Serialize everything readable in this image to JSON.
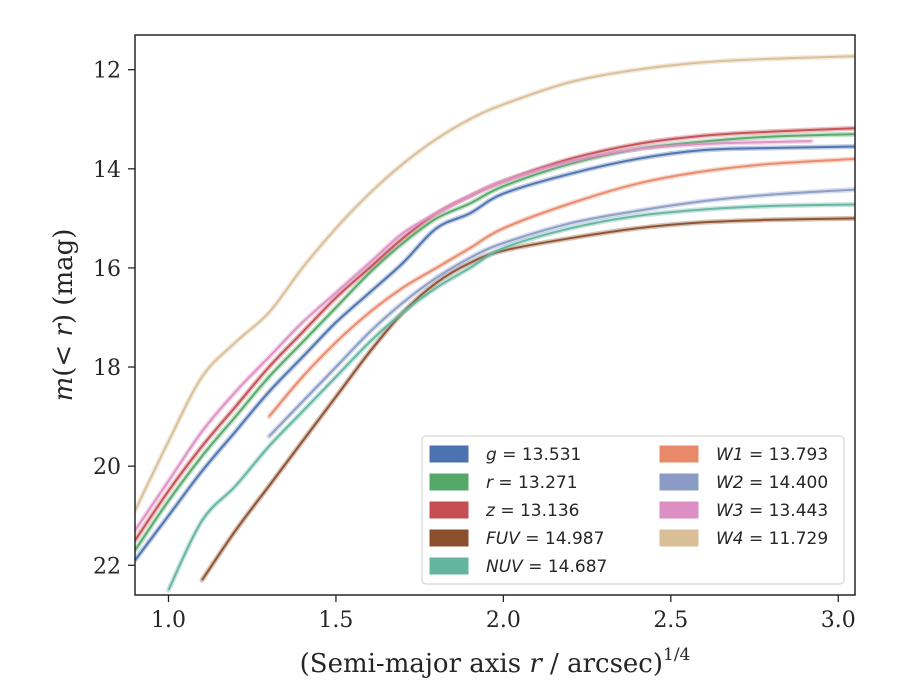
{
  "chart_data": {
    "type": "line",
    "xlabel": "(Semi-major axis r / arcsec)^1/4",
    "xlabel_parts": {
      "prefix": "(Semi-major axis ",
      "var": "r",
      "suffix": " / arcsec)",
      "sup": "1/4"
    },
    "ylabel": "m(< r) (mag)",
    "ylabel_parts": {
      "m": "m",
      "open": "(",
      "lt": "< ",
      "r": "r",
      "close": ")",
      "unit": " (mag)"
    },
    "xlim": [
      0.9,
      3.05
    ],
    "ylim": [
      22.6,
      11.3
    ],
    "y_inverted": true,
    "x_ticks": [
      1.0,
      1.5,
      2.0,
      2.5,
      3.0
    ],
    "x_tick_labels": [
      "1.0",
      "1.5",
      "2.0",
      "2.5",
      "3.0"
    ],
    "y_ticks": [
      12,
      14,
      16,
      18,
      20,
      22
    ],
    "y_tick_labels": [
      "12",
      "14",
      "16",
      "18",
      "20",
      "22"
    ],
    "grid": false,
    "legend_position": "lower-right",
    "series": [
      {
        "name": "g",
        "legend_value": "13.531",
        "color": "#4c72b0",
        "x": [
          0.9,
          1.0,
          1.1,
          1.2,
          1.3,
          1.4,
          1.5,
          1.6,
          1.7,
          1.8,
          1.9,
          2.0,
          2.2,
          2.4,
          2.6,
          2.8,
          3.05
        ],
        "y": [
          21.9,
          21.0,
          20.1,
          19.3,
          18.5,
          17.8,
          17.1,
          16.5,
          15.9,
          15.2,
          14.9,
          14.5,
          14.1,
          13.8,
          13.62,
          13.58,
          13.55
        ]
      },
      {
        "name": "r",
        "legend_value": "13.271",
        "color": "#55a868",
        "x": [
          0.9,
          1.0,
          1.1,
          1.2,
          1.3,
          1.4,
          1.5,
          1.6,
          1.7,
          1.8,
          1.9,
          2.0,
          2.2,
          2.4,
          2.6,
          2.8,
          3.05
        ],
        "y": [
          21.7,
          20.7,
          19.8,
          19.0,
          18.2,
          17.5,
          16.8,
          16.1,
          15.5,
          15.0,
          14.7,
          14.35,
          13.9,
          13.6,
          13.45,
          13.35,
          13.3
        ]
      },
      {
        "name": "z",
        "legend_value": "13.136",
        "color": "#c44e52",
        "x": [
          0.9,
          1.0,
          1.1,
          1.2,
          1.3,
          1.4,
          1.5,
          1.6,
          1.7,
          1.8,
          1.9,
          2.0,
          2.2,
          2.4,
          2.6,
          2.8,
          3.05
        ],
        "y": [
          21.5,
          20.5,
          19.6,
          18.8,
          18.0,
          17.3,
          16.6,
          16.0,
          15.4,
          14.9,
          14.55,
          14.25,
          13.8,
          13.5,
          13.33,
          13.25,
          13.18
        ]
      },
      {
        "name": "FUV",
        "legend_value": "14.987",
        "color": "#8c4f2e",
        "x": [
          1.1,
          1.2,
          1.3,
          1.4,
          1.5,
          1.6,
          1.7,
          1.8,
          1.9,
          2.0,
          2.2,
          2.4,
          2.6,
          2.8,
          3.05
        ],
        "y": [
          22.3,
          21.3,
          20.4,
          19.5,
          18.6,
          17.7,
          16.9,
          16.3,
          15.9,
          15.65,
          15.4,
          15.2,
          15.08,
          15.03,
          15.0
        ]
      },
      {
        "name": "NUV",
        "legend_value": "14.687",
        "color": "#64b5a0",
        "x": [
          1.0,
          1.1,
          1.2,
          1.3,
          1.4,
          1.5,
          1.6,
          1.7,
          1.8,
          1.9,
          2.0,
          2.2,
          2.4,
          2.6,
          2.8,
          3.05
        ],
        "y": [
          22.5,
          21.1,
          20.4,
          19.6,
          18.9,
          18.2,
          17.5,
          16.9,
          16.4,
          16.0,
          15.6,
          15.2,
          14.95,
          14.82,
          14.75,
          14.72
        ]
      },
      {
        "name": "W1",
        "legend_value": "13.793",
        "color": "#e8896a",
        "x": [
          1.3,
          1.4,
          1.5,
          1.6,
          1.7,
          1.8,
          1.9,
          2.0,
          2.2,
          2.4,
          2.6,
          2.8,
          3.05
        ],
        "y": [
          19.0,
          18.2,
          17.5,
          16.9,
          16.4,
          16.0,
          15.6,
          15.2,
          14.7,
          14.3,
          14.05,
          13.9,
          13.8
        ]
      },
      {
        "name": "W2",
        "legend_value": "14.400",
        "color": "#8a9bc6",
        "x": [
          1.3,
          1.4,
          1.5,
          1.6,
          1.7,
          1.8,
          1.9,
          2.0,
          2.2,
          2.4,
          2.6,
          2.8,
          3.05
        ],
        "y": [
          19.4,
          18.7,
          18.0,
          17.3,
          16.7,
          16.2,
          15.8,
          15.5,
          15.1,
          14.85,
          14.65,
          14.52,
          14.42
        ]
      },
      {
        "name": "W3",
        "legend_value": "13.443",
        "color": "#dd8fc4",
        "x": [
          0.9,
          1.0,
          1.1,
          1.2,
          1.3,
          1.4,
          1.5,
          1.6,
          1.7,
          1.8,
          1.9,
          2.0,
          2.2,
          2.4,
          2.6,
          2.8,
          2.92
        ],
        "y": [
          21.3,
          20.3,
          19.3,
          18.5,
          17.8,
          17.1,
          16.5,
          15.9,
          15.3,
          14.9,
          14.55,
          14.25,
          13.85,
          13.6,
          13.5,
          13.46,
          13.44
        ]
      },
      {
        "name": "W4",
        "legend_value": "11.729",
        "color": "#d9bf98",
        "x": [
          0.9,
          1.0,
          1.1,
          1.2,
          1.3,
          1.4,
          1.5,
          1.6,
          1.7,
          1.8,
          1.9,
          2.0,
          2.2,
          2.4,
          2.6,
          2.8,
          3.05
        ],
        "y": [
          20.9,
          19.5,
          18.2,
          17.5,
          16.9,
          16.0,
          15.2,
          14.5,
          13.9,
          13.4,
          13.0,
          12.7,
          12.25,
          12.0,
          11.85,
          11.78,
          11.73
        ]
      }
    ]
  }
}
